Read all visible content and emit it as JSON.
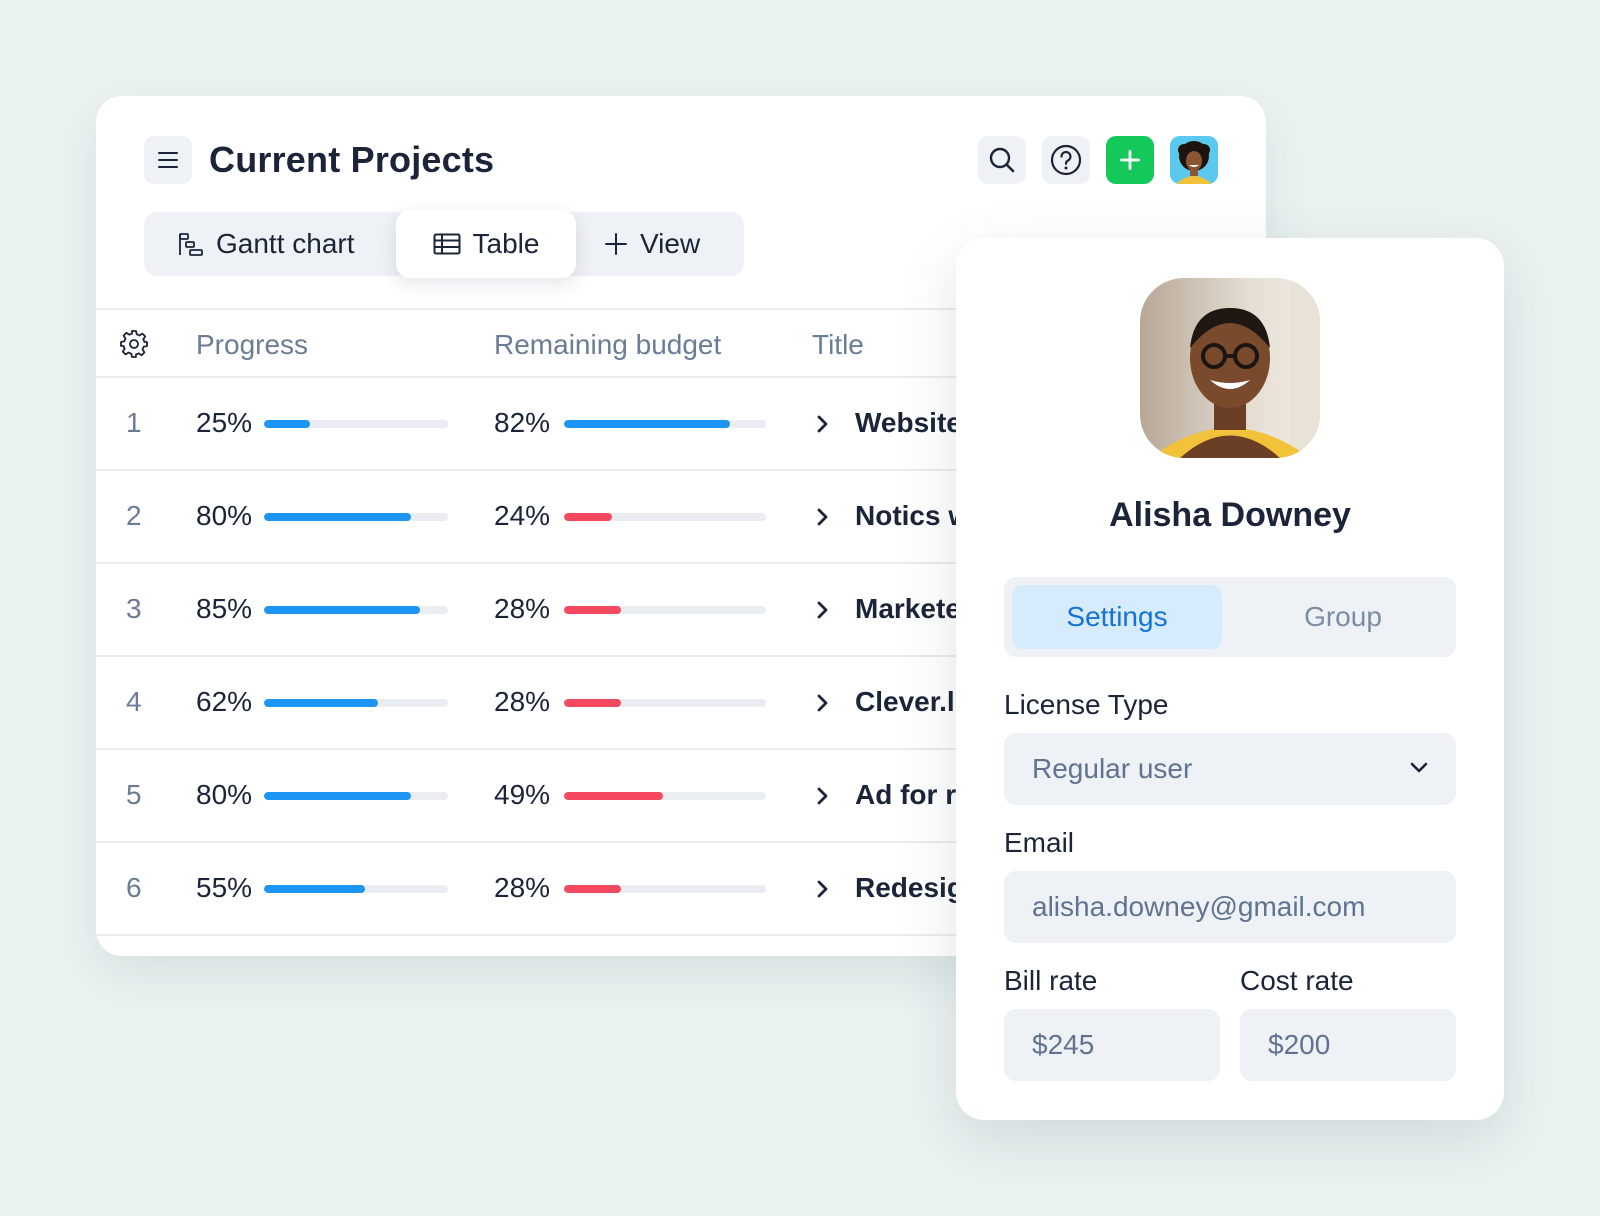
{
  "header": {
    "title": "Current Projects",
    "menu_icon": "hamburger-icon",
    "search_icon": "search-icon",
    "help_icon": "help-icon",
    "add_icon": "plus-icon",
    "add_color": "#15c85a"
  },
  "views": {
    "tabs": [
      {
        "label": "Gantt chart",
        "icon": "gantt-icon"
      },
      {
        "label": "Table",
        "icon": "table-icon",
        "active": true
      },
      {
        "label": "View",
        "icon": "plus-icon"
      }
    ]
  },
  "table": {
    "columns": {
      "progress": "Progress",
      "budget": "Remaining budget",
      "title": "Title"
    },
    "rows": [
      {
        "num": "1",
        "progress": "25%",
        "progress_value": 0.25,
        "budget": "82%",
        "budget_value": 0.82,
        "budget_status": "ok",
        "title": "Website"
      },
      {
        "num": "2",
        "progress": "80%",
        "progress_value": 0.8,
        "budget": "24%",
        "budget_value": 0.24,
        "budget_status": "low",
        "title": "Notics w"
      },
      {
        "num": "3",
        "progress": "85%",
        "progress_value": 0.85,
        "budget": "28%",
        "budget_value": 0.28,
        "budget_status": "low",
        "title": "Markete"
      },
      {
        "num": "4",
        "progress": "62%",
        "progress_value": 0.62,
        "budget": "28%",
        "budget_value": 0.28,
        "budget_status": "low",
        "title": "Clever.l"
      },
      {
        "num": "5",
        "progress": "80%",
        "progress_value": 0.8,
        "budget": "49%",
        "budget_value": 0.49,
        "budget_status": "low",
        "title": "Ad for r"
      },
      {
        "num": "6",
        "progress": "55%",
        "progress_value": 0.55,
        "budget": "28%",
        "budget_value": 0.28,
        "budget_status": "low",
        "title": "Redesig"
      }
    ],
    "colors": {
      "ok": "#1d95f3",
      "low": "#f4495f"
    }
  },
  "profile": {
    "name": "Alisha Downey",
    "tabs": {
      "settings": "Settings",
      "group": "Group"
    },
    "license_label": "License Type",
    "license_value": "Regular user",
    "email_label": "Email",
    "email_value": "alisha.downey@gmail.com",
    "bill_label": "Bill rate",
    "bill_value": "$245",
    "cost_label": "Cost rate",
    "cost_value": "$200"
  }
}
